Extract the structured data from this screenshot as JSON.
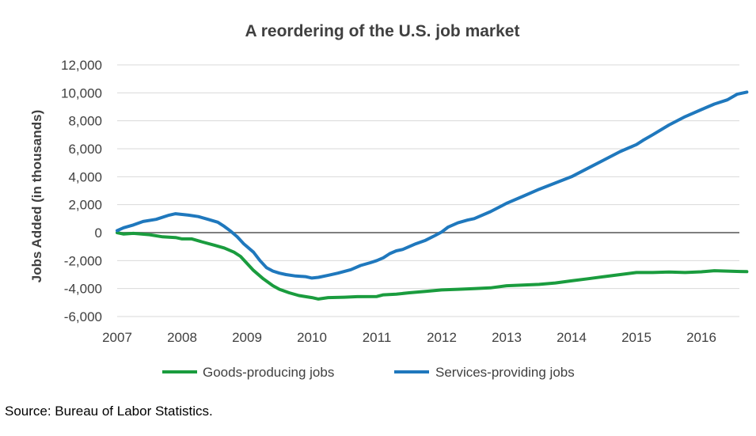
{
  "chart_data": {
    "type": "line",
    "title": "A reordering of the U.S. job market",
    "xlabel": "",
    "ylabel": "Jobs Added (in thousands)",
    "xlim": [
      2007,
      2016.7
    ],
    "ylim": [
      -6000,
      12000
    ],
    "x_ticks": [
      2007,
      2008,
      2009,
      2010,
      2011,
      2012,
      2013,
      2014,
      2015,
      2016
    ],
    "y_ticks": [
      -6000,
      -4000,
      -2000,
      0,
      2000,
      4000,
      6000,
      8000,
      10000,
      12000
    ],
    "y_tick_labels": [
      "-6,000",
      "-4,000",
      "-2,000",
      "0",
      "2,000",
      "4,000",
      "6,000",
      "8,000",
      "10,000",
      "12,000"
    ],
    "grid": true,
    "legend": "bottom",
    "series": [
      {
        "name": "Goods-producing jobs",
        "color": "#1a9c3e",
        "points": [
          [
            2007.0,
            0
          ],
          [
            2007.1,
            -100
          ],
          [
            2007.25,
            -50
          ],
          [
            2007.5,
            -150
          ],
          [
            2007.7,
            -300
          ],
          [
            2007.9,
            -350
          ],
          [
            2008.0,
            -450
          ],
          [
            2008.15,
            -450
          ],
          [
            2008.3,
            -650
          ],
          [
            2008.5,
            -900
          ],
          [
            2008.65,
            -1100
          ],
          [
            2008.8,
            -1400
          ],
          [
            2008.9,
            -1700
          ],
          [
            2009.0,
            -2200
          ],
          [
            2009.1,
            -2700
          ],
          [
            2009.25,
            -3300
          ],
          [
            2009.4,
            -3800
          ],
          [
            2009.5,
            -4050
          ],
          [
            2009.65,
            -4300
          ],
          [
            2009.8,
            -4500
          ],
          [
            2010.0,
            -4650
          ],
          [
            2010.1,
            -4750
          ],
          [
            2010.25,
            -4650
          ],
          [
            2010.5,
            -4620
          ],
          [
            2010.7,
            -4580
          ],
          [
            2011.0,
            -4570
          ],
          [
            2011.1,
            -4450
          ],
          [
            2011.3,
            -4400
          ],
          [
            2011.5,
            -4300
          ],
          [
            2011.75,
            -4200
          ],
          [
            2012.0,
            -4100
          ],
          [
            2012.25,
            -4050
          ],
          [
            2012.5,
            -4000
          ],
          [
            2012.75,
            -3950
          ],
          [
            2013.0,
            -3800
          ],
          [
            2013.25,
            -3750
          ],
          [
            2013.5,
            -3700
          ],
          [
            2013.75,
            -3600
          ],
          [
            2014.0,
            -3450
          ],
          [
            2014.25,
            -3300
          ],
          [
            2014.5,
            -3150
          ],
          [
            2014.75,
            -3000
          ],
          [
            2015.0,
            -2850
          ],
          [
            2015.25,
            -2850
          ],
          [
            2015.5,
            -2820
          ],
          [
            2015.75,
            -2850
          ],
          [
            2016.0,
            -2800
          ],
          [
            2016.2,
            -2720
          ],
          [
            2016.4,
            -2750
          ],
          [
            2016.6,
            -2780
          ],
          [
            2016.7,
            -2790
          ]
        ]
      },
      {
        "name": "Services-providing jobs",
        "color": "#1f78bd",
        "points": [
          [
            2007.0,
            150
          ],
          [
            2007.1,
            350
          ],
          [
            2007.25,
            550
          ],
          [
            2007.4,
            800
          ],
          [
            2007.6,
            950
          ],
          [
            2007.8,
            1250
          ],
          [
            2007.9,
            1350
          ],
          [
            2008.0,
            1300
          ],
          [
            2008.1,
            1250
          ],
          [
            2008.25,
            1150
          ],
          [
            2008.4,
            950
          ],
          [
            2008.55,
            750
          ],
          [
            2008.65,
            450
          ],
          [
            2008.75,
            100
          ],
          [
            2008.85,
            -300
          ],
          [
            2008.95,
            -800
          ],
          [
            2009.1,
            -1400
          ],
          [
            2009.2,
            -2000
          ],
          [
            2009.3,
            -2500
          ],
          [
            2009.4,
            -2750
          ],
          [
            2009.5,
            -2900
          ],
          [
            2009.6,
            -3000
          ],
          [
            2009.75,
            -3100
          ],
          [
            2009.9,
            -3150
          ],
          [
            2010.0,
            -3250
          ],
          [
            2010.1,
            -3200
          ],
          [
            2010.25,
            -3050
          ],
          [
            2010.4,
            -2900
          ],
          [
            2010.6,
            -2650
          ],
          [
            2010.75,
            -2350
          ],
          [
            2010.9,
            -2150
          ],
          [
            2011.0,
            -2000
          ],
          [
            2011.1,
            -1800
          ],
          [
            2011.2,
            -1500
          ],
          [
            2011.3,
            -1300
          ],
          [
            2011.4,
            -1200
          ],
          [
            2011.6,
            -800
          ],
          [
            2011.75,
            -550
          ],
          [
            2011.9,
            -200
          ],
          [
            2012.0,
            50
          ],
          [
            2012.1,
            400
          ],
          [
            2012.25,
            700
          ],
          [
            2012.4,
            900
          ],
          [
            2012.5,
            1000
          ],
          [
            2012.75,
            1500
          ],
          [
            2013.0,
            2100
          ],
          [
            2013.25,
            2600
          ],
          [
            2013.5,
            3100
          ],
          [
            2013.75,
            3550
          ],
          [
            2014.0,
            4000
          ],
          [
            2014.25,
            4600
          ],
          [
            2014.5,
            5200
          ],
          [
            2014.75,
            5800
          ],
          [
            2015.0,
            6300
          ],
          [
            2015.1,
            6600
          ],
          [
            2015.25,
            7000
          ],
          [
            2015.5,
            7700
          ],
          [
            2015.75,
            8300
          ],
          [
            2016.0,
            8800
          ],
          [
            2016.2,
            9200
          ],
          [
            2016.4,
            9500
          ],
          [
            2016.55,
            9900
          ],
          [
            2016.7,
            10050
          ]
        ]
      }
    ]
  },
  "footer": {
    "source": "Source: Bureau of Labor Statistics."
  }
}
